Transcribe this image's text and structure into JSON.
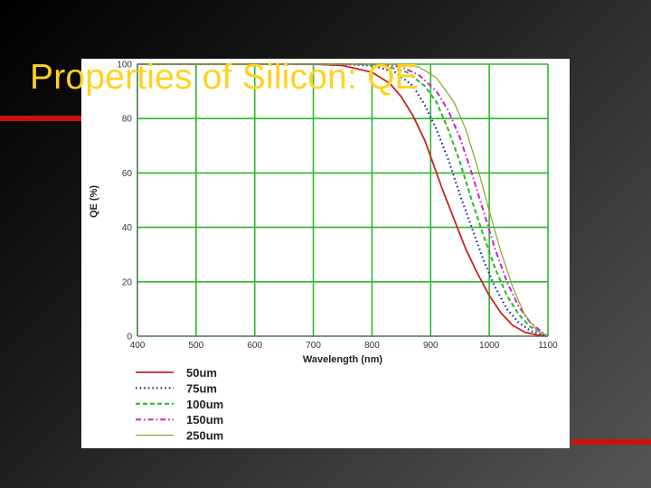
{
  "slide": {
    "title": "Properties of Silicon: QE",
    "title_color": "#ffd21f",
    "accent_color": "#cc1111",
    "background_colors": [
      "#000000",
      "#555555"
    ]
  },
  "chart_data": {
    "type": "line",
    "xlabel": "Wavelength (nm)",
    "ylabel": "QE (%)",
    "xlim": [
      400,
      1100
    ],
    "ylim": [
      0,
      100
    ],
    "xticks": [
      400,
      500,
      600,
      700,
      800,
      900,
      1000,
      1100
    ],
    "yticks": [
      0,
      20,
      40,
      60,
      80,
      100
    ],
    "grid": true,
    "grid_color": "#2db82d",
    "legend_position": "bottom-left",
    "series": [
      {
        "name": "50um",
        "color": "#cc2222",
        "dash": "solid",
        "x": [
          400,
          700,
          750,
          800,
          830,
          850,
          870,
          890,
          900,
          920,
          940,
          960,
          980,
          1000,
          1020,
          1040,
          1060,
          1080,
          1100
        ],
        "y": [
          100,
          100,
          99.5,
          97,
          93,
          88,
          81,
          72,
          66,
          54,
          43,
          32,
          23,
          15,
          8.5,
          4,
          1.5,
          0.5,
          0
        ]
      },
      {
        "name": "75um",
        "color": "#1a2faa",
        "dash": "dotted",
        "x": [
          400,
          750,
          800,
          840,
          870,
          890,
          910,
          930,
          950,
          970,
          990,
          1010,
          1030,
          1050,
          1070,
          1090,
          1100
        ],
        "y": [
          100,
          100,
          99.5,
          97,
          92,
          85,
          76,
          65,
          52,
          40,
          28,
          18,
          10,
          5,
          2,
          0.5,
          0
        ]
      },
      {
        "name": "100um",
        "color": "#22bb22",
        "dash": "dashed",
        "x": [
          400,
          780,
          820,
          860,
          890,
          910,
          930,
          950,
          970,
          990,
          1010,
          1030,
          1050,
          1070,
          1090,
          1100
        ],
        "y": [
          100,
          100,
          99.5,
          97,
          92,
          86,
          76,
          64,
          50,
          37,
          25,
          15,
          8,
          3.5,
          1,
          0
        ]
      },
      {
        "name": "150um",
        "color": "#cc22cc",
        "dash": "dashdot",
        "x": [
          400,
          800,
          850,
          880,
          910,
          930,
          950,
          970,
          990,
          1010,
          1030,
          1050,
          1070,
          1090,
          1100
        ],
        "y": [
          100,
          100,
          99,
          96,
          90,
          83,
          73,
          60,
          46,
          32,
          20,
          11,
          5,
          1.5,
          0
        ]
      },
      {
        "name": "250um",
        "color": "#8aa628",
        "dash": "solid",
        "x": [
          400,
          830,
          880,
          910,
          940,
          960,
          980,
          1000,
          1020,
          1040,
          1060,
          1080,
          1095,
          1100
        ],
        "y": [
          100,
          100,
          99,
          95,
          86,
          76,
          62,
          46,
          31,
          18,
          8,
          2.5,
          0.5,
          0
        ]
      }
    ]
  }
}
